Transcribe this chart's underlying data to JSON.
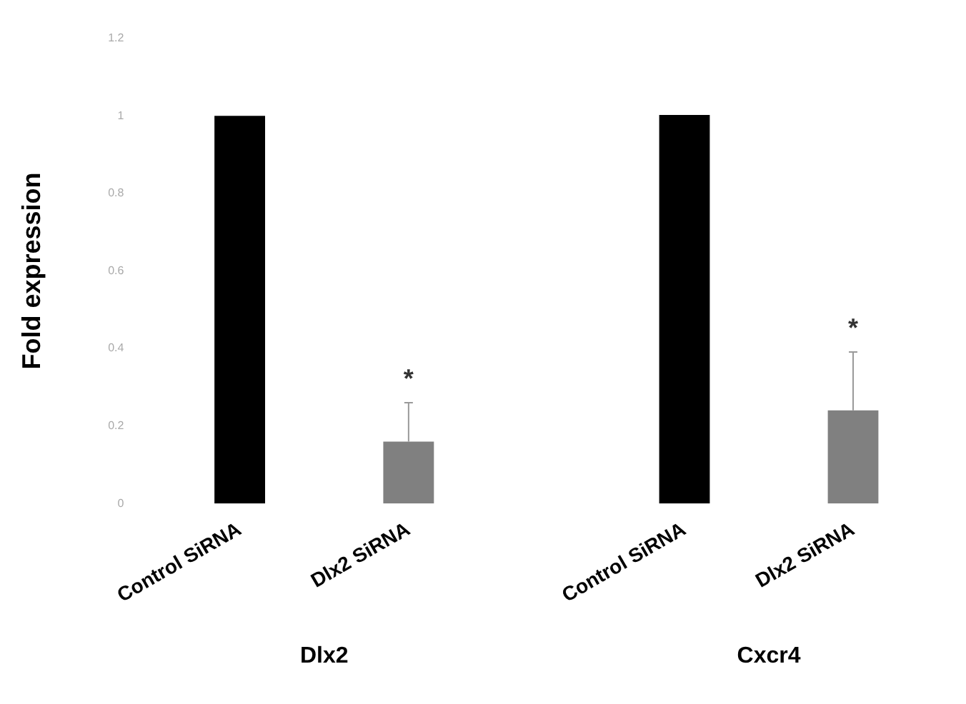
{
  "chart_data": [
    {
      "type": "bar",
      "categories": [
        "Control SiRNA",
        "Dlx2 SiRNA"
      ],
      "values": [
        1,
        0.16
      ],
      "colors": [
        "#000000",
        "#808080"
      ],
      "errors": [
        null,
        [
          0.16,
          0.26
        ]
      ],
      "ylim": [
        0,
        1.2
      ],
      "yticks": [
        0,
        0.2,
        0.4,
        0.6,
        0.8,
        1,
        1.2
      ],
      "ylabel": "Fold expression",
      "xlabel": "Dlx2",
      "annotations": [
        "*"
      ]
    },
    {
      "type": "bar",
      "categories": [
        "Control SiRNA",
        "Dlx2 SiRNA"
      ],
      "values": [
        1,
        0.24
      ],
      "colors": [
        "#000000",
        "#808080"
      ],
      "errors": [
        null,
        [
          0.24,
          0.39
        ]
      ],
      "ylim": [
        0,
        1.2
      ],
      "tick_labels": "x",
      "xlabel": "Cxcr4",
      "annotations": [
        "*"
      ]
    }
  ]
}
